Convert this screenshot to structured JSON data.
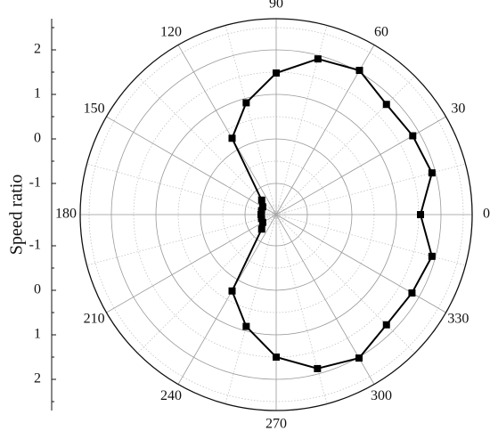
{
  "chart_data": {
    "type": "polar",
    "y_label": "Speed ratio",
    "x": [
      0,
      15,
      30,
      45,
      60,
      75,
      90,
      105,
      120,
      135,
      150,
      165,
      180,
      195,
      210,
      225,
      240,
      255,
      270,
      285,
      300,
      315,
      330,
      345
    ],
    "series": [
      {
        "color": "#000000",
        "values": [
          1.54,
          1.92,
          1.84,
          1.8,
          2.04,
          1.92,
          1.48,
          0.9,
          0.28,
          -1.24,
          -1.35,
          -1.36,
          -1.36,
          -1.36,
          -1.35,
          -1.24,
          0.28,
          0.9,
          1.5,
          1.88,
          2.02,
          1.8,
          1.82,
          1.92
        ]
      }
    ],
    "ylim": [
      -1.7,
      2.7
    ],
    "yticks": [
      -1,
      0,
      1,
      2
    ],
    "xticks": [
      0,
      30,
      60,
      90,
      120,
      150,
      180,
      210,
      240,
      270,
      300,
      330
    ],
    "grid": true
  }
}
